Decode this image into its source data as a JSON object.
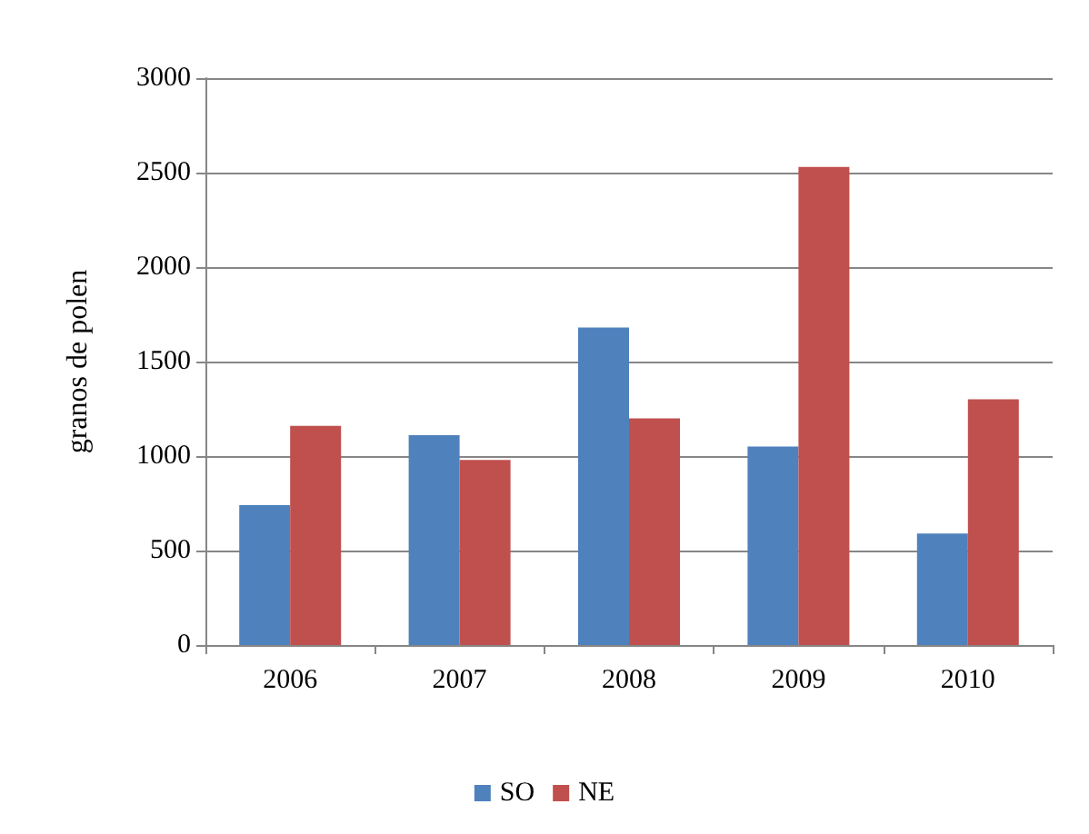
{
  "chart_data": {
    "type": "bar",
    "ylabel": "granos de polen",
    "categories": [
      "2006",
      "2007",
      "2008",
      "2009",
      "2010"
    ],
    "series": [
      {
        "name": "SO",
        "color": "#4f81bd",
        "values": [
          740,
          1110,
          1680,
          1050,
          590
        ]
      },
      {
        "name": "NE",
        "color": "#c0504d",
        "values": [
          1160,
          980,
          1200,
          2530,
          1300
        ]
      }
    ],
    "ylim": [
      0,
      3000
    ],
    "yticks": [
      0,
      500,
      1000,
      1500,
      2000,
      2500,
      3000
    ],
    "grid": "y",
    "legend": "bottom"
  }
}
